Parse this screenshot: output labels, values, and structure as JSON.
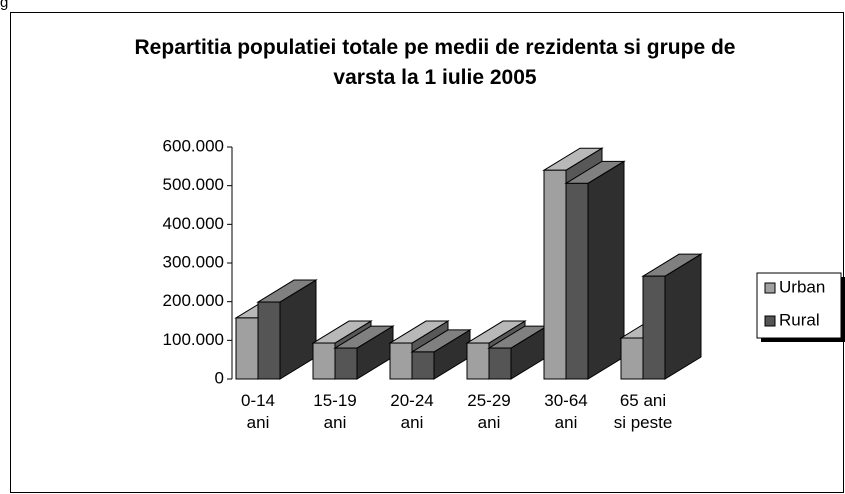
{
  "caption": "g",
  "chart_data": {
    "type": "bar3d",
    "title": "Repartitia populatiei totale pe medii de rezidenta si grupe de varsta la 1 iulie 2005",
    "categories": [
      "0-14 ani",
      "15-19 ani",
      "20-24 ani",
      "25-29 ani",
      "30-64 ani",
      "65 ani si peste"
    ],
    "series": [
      {
        "name": "Urban",
        "color": "#a0a0a0",
        "values": [
          158000,
          93000,
          93000,
          93000,
          540000,
          106000
        ]
      },
      {
        "name": "Rural",
        "color": "#555555",
        "values": [
          199000,
          80000,
          70000,
          80000,
          506000,
          266000
        ]
      }
    ],
    "ylim": [
      0,
      600000
    ],
    "yticks": [
      0,
      {
        "value": 100000,
        "label": "100.000"
      },
      {
        "value": 200000,
        "label": "200.000"
      },
      {
        "value": 300000,
        "label": "300.000"
      },
      {
        "value": 400000,
        "label": "400.000"
      },
      {
        "value": 500000,
        "label": "500.000"
      },
      {
        "value": 600000,
        "label": "600.000"
      }
    ],
    "legend": "right"
  }
}
